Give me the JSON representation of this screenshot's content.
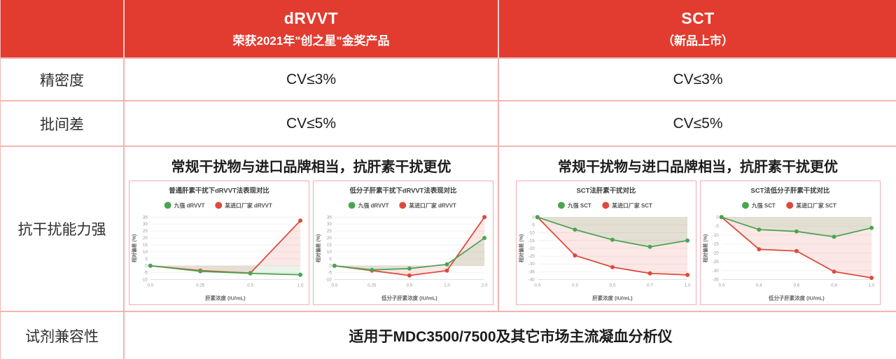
{
  "colors": {
    "header_bg": "#e23c30",
    "header_text": "#ffffff",
    "grid_line": "#f3b5b0",
    "chart_border": "#f0aeb4",
    "series_green": "#4ca452",
    "series_red": "#dd4a3c"
  },
  "header": {
    "drvvt": {
      "title": "dRVVT",
      "subtitle": "荣获2021年\"创之星\"金奖产品"
    },
    "sct": {
      "title": "SCT",
      "subtitle": "（新品上市）"
    }
  },
  "rows": {
    "precision": {
      "label": "精密度",
      "drvvt": "CV≤3%",
      "sct": "CV≤3%"
    },
    "batch": {
      "label": "批间差",
      "drvvt": "CV≤5%",
      "sct": "CV≤5%"
    },
    "interference": {
      "label": "抗干扰能力强",
      "drvvt_text": "常规干扰物与进口品牌相当，抗肝素干扰更优",
      "sct_text": "常规干扰物与进口品牌相当，抗肝素干扰更优"
    },
    "compatibility": {
      "label": "试剂兼容性",
      "value": "适用于MDC3500/7500及其它市场主流凝血分析仪"
    }
  },
  "chart_data": [
    {
      "type": "line",
      "title": "普通肝素干扰下dRVVT法表现对比",
      "categories": [
        "0.0",
        "0.25",
        "0.5",
        "1.0"
      ],
      "series": [
        {
          "name": "九强 dRVVT",
          "color": "#4ca452",
          "values": [
            0,
            -4,
            -5.5,
            -6.5
          ]
        },
        {
          "name": "某进口厂家 dRVVT",
          "color": "#dd4a3c",
          "values": [
            0,
            -3.5,
            -5.3,
            32.5
          ]
        }
      ],
      "xlabel": "肝素浓度 (IU/mL)",
      "ylabel": "相对偏差 (%)",
      "ylim": [
        -10,
        35
      ],
      "ytick_step": 5,
      "grid": true,
      "legend_position": "top"
    },
    {
      "type": "line",
      "title": "低分子肝素干扰下dRVVT法表现对比",
      "categories": [
        "0.0",
        "0.25",
        "0.5",
        "1.0",
        "2.0"
      ],
      "series": [
        {
          "name": "九强 dRVVT",
          "color": "#4ca452",
          "values": [
            0,
            -3,
            -2,
            1,
            20
          ]
        },
        {
          "name": "某进口厂家 dRVVT",
          "color": "#dd4a3c",
          "values": [
            0,
            -3.5,
            -7,
            -3.5,
            35
          ]
        }
      ],
      "xlabel": "低分子肝素浓度 (IU/mL)",
      "ylabel": "相对偏差 (%)",
      "ylim": [
        -10,
        35
      ],
      "ytick_step": 5,
      "grid": true,
      "legend_position": "top"
    },
    {
      "type": "line",
      "title": "SCT法肝素干扰对比",
      "categories": [
        "0.0",
        "0.3",
        "0.5",
        "0.7",
        "1.0"
      ],
      "series": [
        {
          "name": "九强 SCT",
          "color": "#4ca452",
          "values": [
            0,
            -8,
            -14.5,
            -19,
            -15
          ]
        },
        {
          "name": "某进口厂家 SCT",
          "color": "#dd4a3c",
          "values": [
            0,
            -24.5,
            -32,
            -36,
            -37
          ]
        }
      ],
      "xlabel": "肝素浓度 (IU/mL)",
      "ylabel": "相对偏差 (%)",
      "ylim": [
        -40,
        0
      ],
      "ytick_step": 5,
      "grid": true,
      "legend_position": "top"
    },
    {
      "type": "line",
      "title": "SCT法低分子肝素干扰对比",
      "categories": [
        "0.0",
        "0.4",
        "0.6",
        "0.8",
        "1.0"
      ],
      "series": [
        {
          "name": "九强 SCT",
          "color": "#4ca452",
          "values": [
            0,
            -7,
            -8,
            -11,
            -6
          ]
        },
        {
          "name": "某进口厂家 SCT",
          "color": "#dd4a3c",
          "values": [
            0,
            -18,
            -19,
            -30.5,
            -34
          ]
        }
      ],
      "xlabel": "低分子肝素浓度 (IU/mL)",
      "ylabel": "相对偏差 (%)",
      "ylim": [
        -35,
        0
      ],
      "ytick_step": 5,
      "grid": true,
      "legend_position": "top"
    }
  ]
}
